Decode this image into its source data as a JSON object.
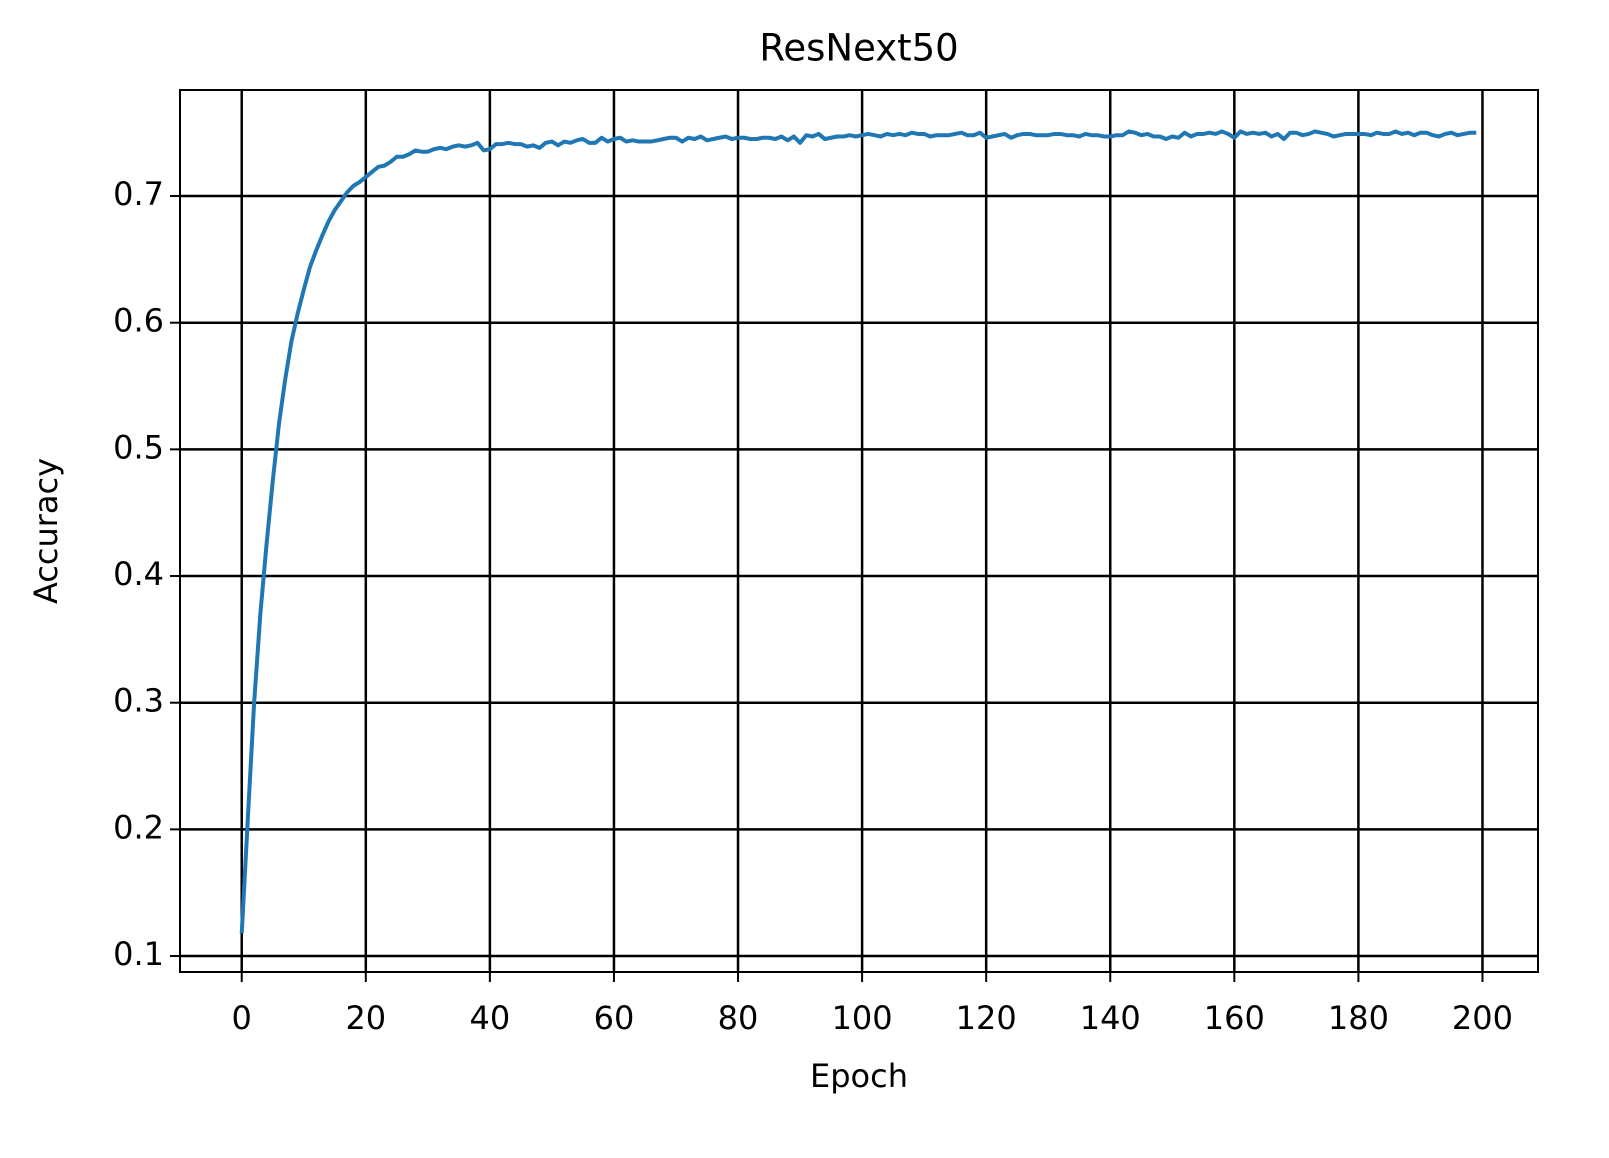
{
  "chart_data": {
    "type": "line",
    "title": "ResNext50",
    "x_label": "Epoch",
    "y_label": "Accuracy",
    "x": [
      0,
      1,
      2,
      3,
      4,
      5,
      6,
      7,
      8,
      9,
      10,
      11,
      12,
      13,
      14,
      15,
      16,
      17,
      18,
      19,
      20,
      21,
      22,
      23,
      24,
      25,
      26,
      27,
      28,
      29,
      30,
      31,
      32,
      33,
      34,
      35,
      36,
      37,
      38,
      39,
      40,
      41,
      42,
      43,
      44,
      45,
      46,
      47,
      48,
      49,
      50,
      51,
      52,
      53,
      54,
      55,
      56,
      57,
      58,
      59,
      60,
      61,
      62,
      63,
      64,
      65,
      66,
      67,
      68,
      69,
      70,
      71,
      72,
      73,
      74,
      75,
      76,
      77,
      78,
      79,
      80,
      81,
      82,
      83,
      84,
      85,
      86,
      87,
      88,
      89,
      90,
      91,
      92,
      93,
      94,
      95,
      96,
      97,
      98,
      99,
      100,
      101,
      102,
      103,
      104,
      105,
      106,
      107,
      108,
      109,
      110,
      111,
      112,
      113,
      114,
      115,
      116,
      117,
      118,
      119,
      120,
      121,
      122,
      123,
      124,
      125,
      126,
      127,
      128,
      129,
      130,
      131,
      132,
      133,
      134,
      135,
      136,
      137,
      138,
      139,
      140,
      141,
      142,
      143,
      144,
      145,
      146,
      147,
      148,
      149,
      150,
      151,
      152,
      153,
      154,
      155,
      156,
      157,
      158,
      159,
      160,
      161,
      162,
      163,
      164,
      165,
      166,
      167,
      168,
      169,
      170,
      171,
      172,
      173,
      174,
      175,
      176,
      177,
      178,
      179,
      180,
      181,
      182,
      183,
      184,
      185,
      186,
      187,
      188,
      189,
      190,
      191,
      192,
      193,
      194,
      195,
      196,
      197,
      198,
      199
    ],
    "series": [
      {
        "name": "Accuracy",
        "color": "#1f77b4",
        "values": [
          0.118,
          0.21,
          0.3,
          0.37,
          0.425,
          0.475,
          0.52,
          0.555,
          0.585,
          0.607,
          0.626,
          0.644,
          0.657,
          0.669,
          0.68,
          0.689,
          0.696,
          0.703,
          0.708,
          0.711,
          0.715,
          0.719,
          0.723,
          0.724,
          0.727,
          0.731,
          0.731,
          0.733,
          0.736,
          0.735,
          0.735,
          0.737,
          0.738,
          0.737,
          0.739,
          0.74,
          0.739,
          0.74,
          0.742,
          0.736,
          0.737,
          0.741,
          0.741,
          0.742,
          0.741,
          0.741,
          0.739,
          0.74,
          0.738,
          0.742,
          0.743,
          0.74,
          0.743,
          0.742,
          0.744,
          0.745,
          0.742,
          0.742,
          0.746,
          0.743,
          0.745,
          0.746,
          0.743,
          0.744,
          0.743,
          0.743,
          0.743,
          0.744,
          0.745,
          0.746,
          0.746,
          0.743,
          0.746,
          0.745,
          0.747,
          0.744,
          0.745,
          0.746,
          0.747,
          0.745,
          0.746,
          0.746,
          0.745,
          0.745,
          0.746,
          0.746,
          0.745,
          0.747,
          0.744,
          0.747,
          0.742,
          0.748,
          0.747,
          0.749,
          0.745,
          0.746,
          0.747,
          0.747,
          0.748,
          0.747,
          0.748,
          0.749,
          0.748,
          0.747,
          0.749,
          0.748,
          0.749,
          0.748,
          0.75,
          0.749,
          0.749,
          0.747,
          0.748,
          0.748,
          0.748,
          0.749,
          0.75,
          0.748,
          0.748,
          0.75,
          0.746,
          0.747,
          0.748,
          0.749,
          0.746,
          0.748,
          0.749,
          0.749,
          0.748,
          0.748,
          0.748,
          0.749,
          0.749,
          0.748,
          0.748,
          0.747,
          0.749,
          0.748,
          0.748,
          0.747,
          0.747,
          0.748,
          0.748,
          0.751,
          0.75,
          0.748,
          0.749,
          0.747,
          0.747,
          0.745,
          0.747,
          0.746,
          0.75,
          0.747,
          0.749,
          0.749,
          0.75,
          0.749,
          0.751,
          0.749,
          0.746,
          0.751,
          0.749,
          0.75,
          0.749,
          0.75,
          0.747,
          0.749,
          0.745,
          0.75,
          0.75,
          0.748,
          0.749,
          0.751,
          0.75,
          0.749,
          0.747,
          0.748,
          0.749,
          0.749,
          0.749,
          0.749,
          0.748,
          0.75,
          0.749,
          0.749,
          0.751,
          0.749,
          0.75,
          0.748,
          0.75,
          0.75,
          0.748,
          0.747,
          0.749,
          0.75,
          0.748,
          0.749,
          0.75,
          0.75
        ]
      }
    ],
    "xlim": [
      -9.95,
      208.95
    ],
    "ylim": [
      0.0874,
      0.7837
    ],
    "xticks": [
      0,
      20,
      40,
      60,
      80,
      100,
      120,
      140,
      160,
      180,
      200
    ],
    "yticks": [
      0.1,
      0.2,
      0.3,
      0.4,
      0.5,
      0.6,
      0.7
    ],
    "grid": true,
    "grid_color": "#000000"
  }
}
